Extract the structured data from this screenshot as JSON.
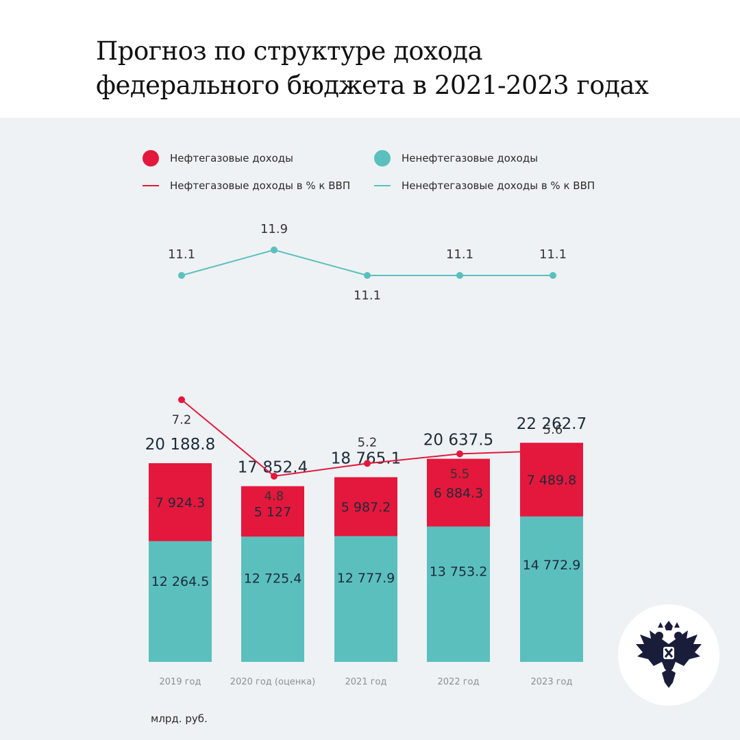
{
  "title": {
    "line1": "Прогноз по структуре дохода",
    "line2": "федерального бюджета в 2021-2023 годах"
  },
  "colors": {
    "oil": "#e3183c",
    "nonoil": "#5bbfbe"
  },
  "legend": {
    "oil_income": "Нефтегазовые доходы",
    "nonoil_income": "Ненефтегазовые доходы",
    "oil_pct": "Нефтегазовые доходы в % к ВВП",
    "nonoil_pct": "Ненефтегазовые доходы в % к ВВП"
  },
  "unit_label": "млрд. руб.",
  "logo": {
    "icon": "double-headed-eagle-icon"
  },
  "chart_data": {
    "type": "bar",
    "stacked": true,
    "categories": [
      "2019 год",
      "2020 год (оценка)",
      "2021 год",
      "2022 год",
      "2023 год"
    ],
    "totals": [
      "20 188.8",
      "17 852.4",
      "18 765.1",
      "20 637.5",
      "22 262.7"
    ],
    "series": [
      {
        "name": "Ненефтегазовые доходы",
        "values": [
          12264.5,
          12725.4,
          12777.9,
          13753.2,
          14772.9
        ],
        "labels": [
          "12 264.5",
          "12 725.4",
          "12 777.9",
          "13 753.2",
          "14 772.9"
        ]
      },
      {
        "name": "Нефтегазовые доходы",
        "values": [
          7924.3,
          5127,
          5987.2,
          6884.3,
          7489.8
        ],
        "labels": [
          "7 924.3",
          "5 127",
          "5 987.2",
          "6 884.3",
          "7 489.8"
        ]
      }
    ],
    "lines": [
      {
        "name": "Ненефтегазовые доходы в % к ВВП",
        "values": [
          11.1,
          11.9,
          11.1,
          11.1,
          11.1
        ],
        "labels": [
          "11.1",
          "11.9",
          "11.1",
          "11.1",
          "11.1"
        ]
      },
      {
        "name": "Нефтегазовые доходы в % к ВВП",
        "values": [
          7.2,
          4.8,
          5.2,
          5.5,
          5.6
        ],
        "labels": [
          "7.2",
          "4.8",
          "5.2",
          "5.5",
          "5.6"
        ]
      }
    ],
    "ylabel": "млрд. руб."
  }
}
